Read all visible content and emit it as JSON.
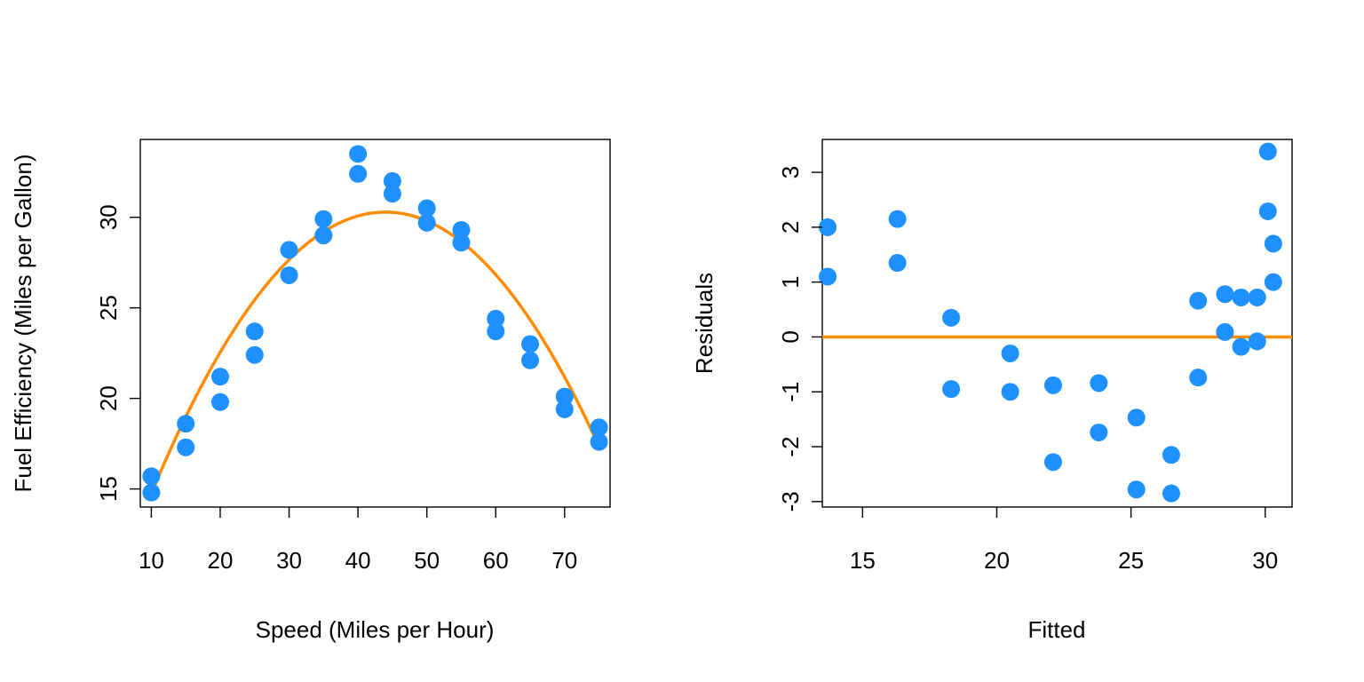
{
  "colors": {
    "points": "#1e90ff",
    "fit": "#ff8c00"
  },
  "chart_data": [
    {
      "type": "scatter",
      "title": "",
      "xlabel": "Speed (Miles per Hour)",
      "ylabel": "Fuel Efficiency (Miles per Gallon)",
      "xlim": [
        8.4,
        76.6
      ],
      "ylim": [
        14.0,
        34.3
      ],
      "xticks": [
        10,
        20,
        30,
        40,
        50,
        60,
        70
      ],
      "yticks": [
        15,
        20,
        25,
        30
      ],
      "grid": false,
      "points": [
        [
          10,
          15.7
        ],
        [
          10,
          14.8
        ],
        [
          15,
          18.6
        ],
        [
          15,
          17.3
        ],
        [
          20,
          21.2
        ],
        [
          20,
          19.8
        ],
        [
          25,
          23.7
        ],
        [
          25,
          22.4
        ],
        [
          30,
          28.2
        ],
        [
          30,
          26.8
        ],
        [
          35,
          29.9
        ],
        [
          35,
          29.0
        ],
        [
          40,
          33.5
        ],
        [
          40,
          32.4
        ],
        [
          45,
          32.0
        ],
        [
          45,
          31.3
        ],
        [
          50,
          30.5
        ],
        [
          50,
          29.7
        ],
        [
          55,
          29.3
        ],
        [
          55,
          28.6
        ],
        [
          60,
          24.4
        ],
        [
          60,
          23.7
        ],
        [
          65,
          23.0
        ],
        [
          65,
          22.1
        ],
        [
          70,
          20.1
        ],
        [
          70,
          19.4
        ],
        [
          75,
          18.4
        ],
        [
          75,
          17.6
        ]
      ],
      "fit": {
        "type": "quadratic",
        "coefficients": [
          4.25,
          1.184,
          -0.01346
        ],
        "x_range": [
          10,
          75
        ]
      }
    },
    {
      "type": "scatter",
      "title": "",
      "xlabel": "Fitted",
      "ylabel": "Residuals",
      "xlim": [
        13.5,
        31.0
      ],
      "ylim": [
        -3.1,
        3.6
      ],
      "xticks": [
        15,
        20,
        25,
        30
      ],
      "yticks": [
        -3,
        -2,
        -1,
        0,
        1,
        2,
        3
      ],
      "grid": false,
      "hline": 0,
      "points": [
        [
          13.7,
          2.0
        ],
        [
          13.7,
          1.1
        ],
        [
          16.3,
          2.15
        ],
        [
          16.3,
          1.35
        ],
        [
          18.3,
          0.35
        ],
        [
          18.3,
          -0.95
        ],
        [
          20.5,
          -0.3
        ],
        [
          20.5,
          -1.0
        ],
        [
          22.1,
          -0.88
        ],
        [
          22.1,
          -2.28
        ],
        [
          23.8,
          -0.84
        ],
        [
          23.8,
          -1.74
        ],
        [
          25.2,
          -1.47
        ],
        [
          25.2,
          -2.78
        ],
        [
          26.5,
          -2.15
        ],
        [
          26.5,
          -2.85
        ],
        [
          27.5,
          0.66
        ],
        [
          27.5,
          -0.74
        ],
        [
          28.5,
          0.78
        ],
        [
          28.5,
          0.09
        ],
        [
          29.1,
          0.72
        ],
        [
          29.1,
          -0.18
        ],
        [
          29.7,
          0.72
        ],
        [
          29.7,
          -0.08
        ],
        [
          30.1,
          3.38
        ],
        [
          30.1,
          2.29
        ],
        [
          30.3,
          1.7
        ],
        [
          30.3,
          1.0
        ]
      ]
    }
  ]
}
